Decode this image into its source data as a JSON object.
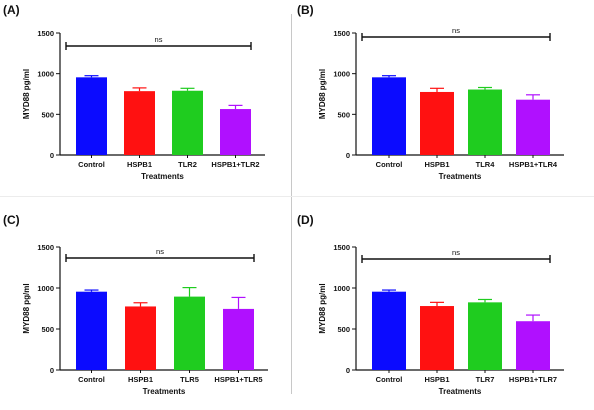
{
  "chart_data": [
    {
      "panel_label": "(A)",
      "type": "bar",
      "categories": [
        "Control",
        "HSPB1",
        "TLR2",
        "HSPB1+TLR2"
      ],
      "values": [
        955,
        785,
        790,
        565
      ],
      "errors": [
        20,
        40,
        30,
        45
      ],
      "colors": [
        "#0b0bff",
        "#ff1111",
        "#1fcc1f",
        "#b010ff"
      ],
      "xlabel": "Treatments",
      "ylabel": "MYD88 pg/ml",
      "ylim": [
        0,
        1500
      ],
      "yticks": [
        "0",
        "500",
        "1000",
        "1500"
      ],
      "significance": "ns"
    },
    {
      "panel_label": "(B)",
      "type": "bar",
      "categories": [
        "Control",
        "HSPB1",
        "TLR4",
        "HSPB1+TLR4"
      ],
      "values": [
        955,
        775,
        805,
        680
      ],
      "errors": [
        20,
        45,
        25,
        60
      ],
      "colors": [
        "#0b0bff",
        "#ff1111",
        "#1fcc1f",
        "#b010ff"
      ],
      "xlabel": "Treatments",
      "ylabel": "MYD88 pg/ml",
      "ylim": [
        0,
        1500
      ],
      "yticks": [
        "0",
        "500",
        "1000",
        "1500"
      ],
      "significance": "ns"
    },
    {
      "panel_label": "(C)",
      "type": "bar",
      "categories": [
        "Control",
        "HSPB1",
        "TLR5",
        "HSPB1+TLR5"
      ],
      "values": [
        955,
        775,
        895,
        745
      ],
      "errors": [
        20,
        45,
        110,
        140
      ],
      "colors": [
        "#0b0bff",
        "#ff1111",
        "#1fcc1f",
        "#b010ff"
      ],
      "xlabel": "Treatments",
      "ylabel": "MYD88 pg/ml",
      "ylim": [
        0,
        1500
      ],
      "yticks": [
        "0",
        "500",
        "1000",
        "1500"
      ],
      "significance": "ns"
    },
    {
      "panel_label": "(D)",
      "type": "bar",
      "categories": [
        "Control",
        "HSPB1",
        "TLR7",
        "HSPB1+TLR7"
      ],
      "values": [
        955,
        780,
        825,
        595
      ],
      "errors": [
        20,
        45,
        35,
        75
      ],
      "colors": [
        "#0b0bff",
        "#ff1111",
        "#1fcc1f",
        "#b010ff"
      ],
      "xlabel": "Treatments",
      "ylabel": "MYD88 pg/ml",
      "ylim": [
        0,
        1500
      ],
      "yticks": [
        "0",
        "500",
        "1000",
        "1500"
      ],
      "significance": "ns"
    }
  ]
}
